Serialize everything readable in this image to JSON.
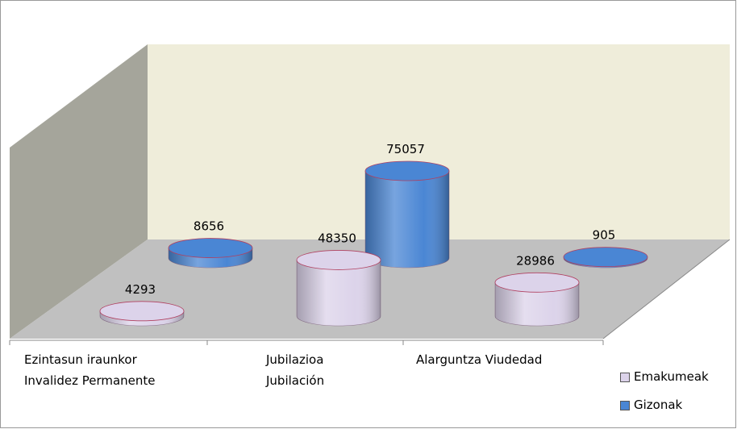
{
  "chart_data": {
    "type": "cylinder3d",
    "categories": [
      "Ezintasun iraunkor\nInvalidez Permanente",
      "Jubilazioa\nJubilación",
      "Alarguntza  Viudedad"
    ],
    "series": [
      {
        "name": "Emakumeak",
        "color": "#dcd3ea",
        "values": [
          4293,
          48350,
          28986
        ]
      },
      {
        "name": "Gizonak",
        "color": "#4a86d4",
        "values": [
          8656,
          75057,
          905
        ]
      }
    ]
  }
}
